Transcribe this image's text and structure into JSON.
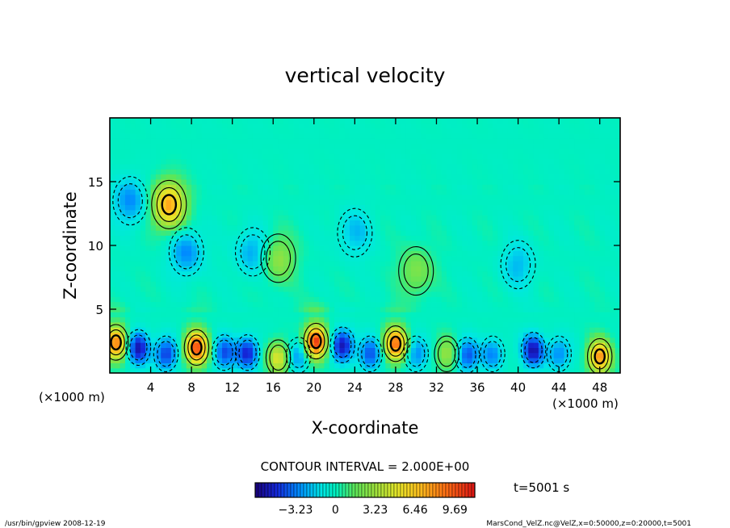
{
  "chart_data": {
    "type": "heatmap",
    "title": "vertical velocity",
    "xlabel": "X-coordinate",
    "ylabel": "Z-coordinate",
    "x_unit_left": "(×1000 m)",
    "x_unit_right": "(×1000 m)",
    "xlim": [
      0,
      50
    ],
    "ylim": [
      0,
      20
    ],
    "x_ticks": [
      4,
      8,
      12,
      16,
      20,
      24,
      28,
      32,
      36,
      40,
      44,
      48
    ],
    "y_ticks": [
      5,
      10,
      15
    ],
    "contour_interval_label": "CONTOUR INTERVAL = 2.000E+00",
    "time_label": "t=5001 s",
    "colorbar_ticks": [
      -3.23,
      0,
      3.23,
      6.46,
      9.69
    ],
    "colorbar_tick_labels": [
      "−3.23",
      "0",
      "3.23",
      "6.46",
      "9.69"
    ],
    "colorbar_range": [
      -6.5,
      11.3
    ],
    "features": [
      {
        "x": 0.6,
        "z": 2.4,
        "value": 8.5
      },
      {
        "x": 2.8,
        "z": 2.0,
        "value": -5.5
      },
      {
        "x": 5.5,
        "z": 1.5,
        "value": -4.5
      },
      {
        "x": 8.5,
        "z": 2.0,
        "value": 10.0
      },
      {
        "x": 11.2,
        "z": 1.6,
        "value": -4.0
      },
      {
        "x": 13.5,
        "z": 1.6,
        "value": -5.0
      },
      {
        "x": 16.5,
        "z": 1.2,
        "value": 5.0
      },
      {
        "x": 18.5,
        "z": 1.4,
        "value": -3.0
      },
      {
        "x": 20.2,
        "z": 2.5,
        "value": 10.5
      },
      {
        "x": 22.8,
        "z": 2.2,
        "value": -5.5
      },
      {
        "x": 25.5,
        "z": 1.5,
        "value": -4.0
      },
      {
        "x": 28.0,
        "z": 2.3,
        "value": 9.0
      },
      {
        "x": 30.0,
        "z": 1.5,
        "value": -3.0
      },
      {
        "x": 33.0,
        "z": 1.5,
        "value": 3.0
      },
      {
        "x": 35.0,
        "z": 1.4,
        "value": -4.0
      },
      {
        "x": 37.5,
        "z": 1.5,
        "value": -3.0
      },
      {
        "x": 41.5,
        "z": 1.8,
        "value": -5.5
      },
      {
        "x": 44.0,
        "z": 1.5,
        "value": -3.0
      },
      {
        "x": 48.0,
        "z": 1.3,
        "value": 8.0
      },
      {
        "x": 5.8,
        "z": 13.2,
        "value": 7.5
      },
      {
        "x": 2.0,
        "z": 13.5,
        "value": -3.0
      },
      {
        "x": 7.5,
        "z": 9.5,
        "value": -3.0
      },
      {
        "x": 14.0,
        "z": 9.5,
        "value": -2.5
      },
      {
        "x": 16.5,
        "z": 9.0,
        "value": 3.0
      },
      {
        "x": 24.0,
        "z": 11.0,
        "value": -2.0
      },
      {
        "x": 30.0,
        "z": 8.0,
        "value": 2.5
      },
      {
        "x": 40.0,
        "z": 8.5,
        "value": -2.0
      }
    ]
  },
  "footer": {
    "left": "/usr/bin/gpview   2008-12-19",
    "right": "MarsCond_VelZ.nc@VelZ,x=0:50000,z=0:20000,t=5001"
  }
}
